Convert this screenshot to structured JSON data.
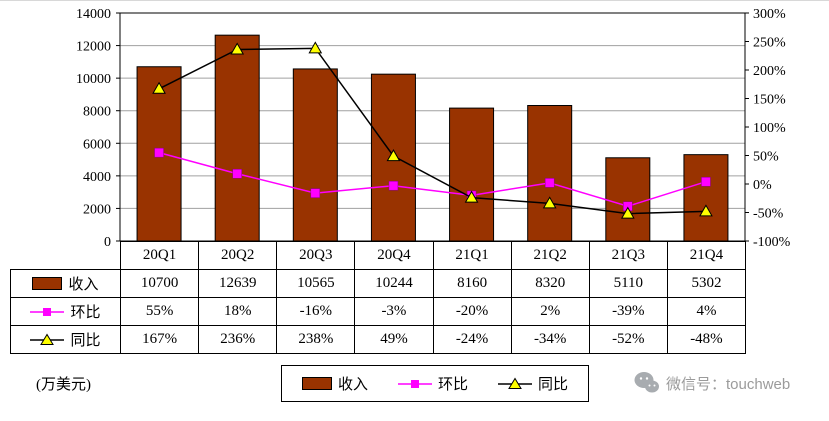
{
  "chart_data": {
    "type": "combo-bar-line",
    "title": "",
    "categories": [
      "20Q1",
      "20Q2",
      "20Q3",
      "20Q4",
      "21Q1",
      "21Q2",
      "21Q3",
      "21Q4"
    ],
    "series": [
      {
        "name": "收入",
        "type": "bar",
        "axis": "left",
        "color": "#993300",
        "values": [
          10700,
          12639,
          10565,
          10244,
          8160,
          8320,
          5110,
          5302
        ]
      },
      {
        "name": "环比",
        "type": "line",
        "axis": "right",
        "color": "#FF00FF",
        "marker": "square",
        "values": [
          55,
          18,
          -16,
          -3,
          -20,
          2,
          -39,
          4
        ],
        "unit": "%"
      },
      {
        "name": "同比",
        "type": "line",
        "axis": "right",
        "color": "#000000",
        "marker": "triangle",
        "marker_color": "#FFFF00",
        "values": [
          167,
          236,
          238,
          49,
          -24,
          -34,
          -52,
          -48
        ],
        "unit": "%"
      }
    ],
    "y_left_axis": {
      "min": 0,
      "max": 14000,
      "step": 2000,
      "tick_labels": [
        "14000",
        "12000",
        "10000",
        "8000",
        "6000",
        "4000",
        "2000",
        "0"
      ]
    },
    "y_right_axis": {
      "min": -100,
      "max": 300,
      "step": 50,
      "tick_labels": [
        "300%",
        "250%",
        "200%",
        "150%",
        "100%",
        "50%",
        "0%",
        "-50%",
        "-100%"
      ]
    },
    "gridlines": true,
    "legend_position": "bottom"
  },
  "table": {
    "categories": [
      "20Q1",
      "20Q2",
      "20Q3",
      "20Q4",
      "21Q1",
      "21Q2",
      "21Q3",
      "21Q4"
    ],
    "rows": [
      {
        "label": "收入",
        "values": [
          "10700",
          "12639",
          "10565",
          "10244",
          "8160",
          "8320",
          "5110",
          "5302"
        ]
      },
      {
        "label": "环比",
        "values": [
          "55%",
          "18%",
          "-16%",
          "-3%",
          "-20%",
          "2%",
          "-39%",
          "4%"
        ]
      },
      {
        "label": "同比",
        "values": [
          "167%",
          "236%",
          "238%",
          "49%",
          "-24%",
          "-34%",
          "-52%",
          "-48%"
        ]
      }
    ]
  },
  "legend": {
    "items": [
      {
        "label": "收入"
      },
      {
        "label": "环比"
      },
      {
        "label": "同比"
      }
    ]
  },
  "footnote": "(万美元)",
  "watermark": {
    "text": "微信号：touchweb"
  }
}
